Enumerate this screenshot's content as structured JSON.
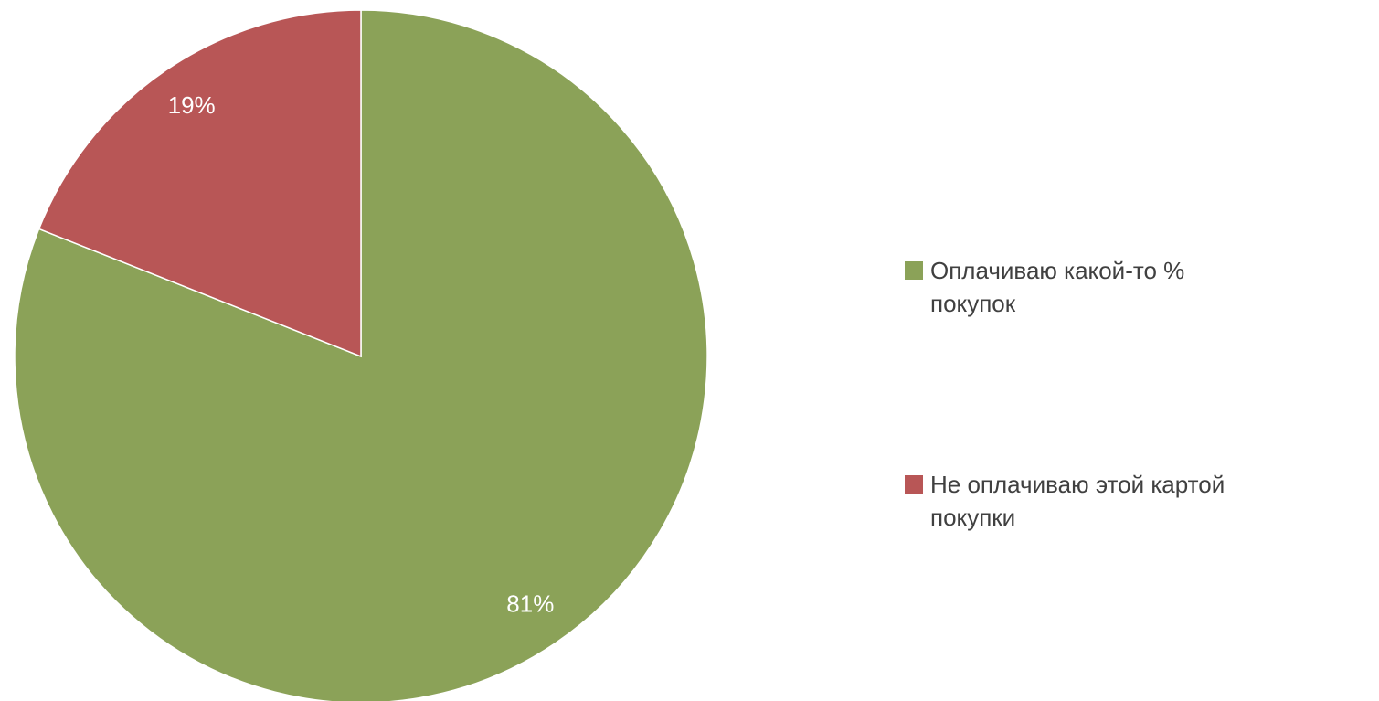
{
  "chart_data": {
    "type": "pie",
    "categories": [
      "Оплачиваю какой-то % покупок",
      "Не оплачиваю этой картой покупки"
    ],
    "values": [
      81,
      19
    ],
    "value_labels": [
      "81%",
      "19%"
    ],
    "colors": [
      "#8ba258",
      "#b85656"
    ],
    "legend": "right"
  }
}
